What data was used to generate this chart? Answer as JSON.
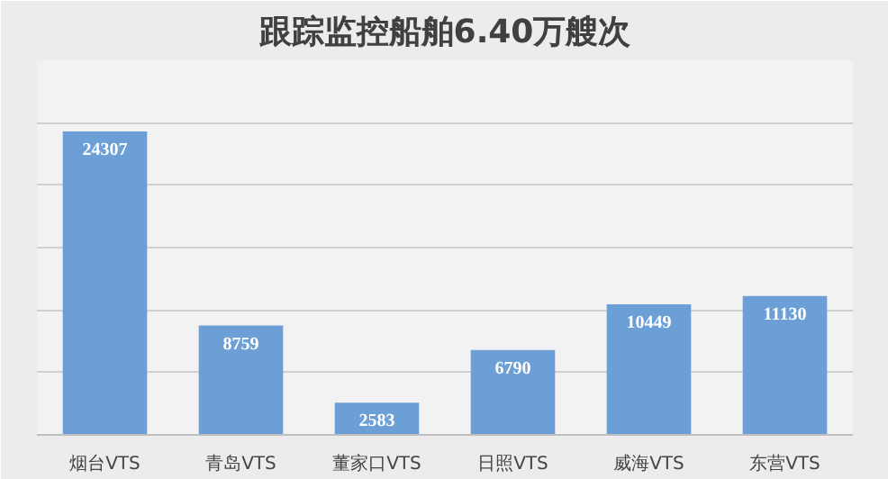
{
  "chart_data": {
    "type": "bar",
    "title": "跟踪监控船舶6.40万艘次",
    "categories": [
      "烟台VTS",
      "青岛VTS",
      "董家口VTS",
      "日照VTS",
      "威海VTS",
      "东营VTS"
    ],
    "values": [
      24307,
      8759,
      2583,
      6790,
      10449,
      11130
    ],
    "color": "#6b9fd6",
    "data_labels": true,
    "ylim": [
      0,
      30000
    ],
    "yticks": [
      {
        "value": 0,
        "label": null
      },
      {
        "value": 5000,
        "label": null
      },
      {
        "value": 10000,
        "label": null
      },
      {
        "value": 15000,
        "label": null
      },
      {
        "value": 20000,
        "label": null
      },
      {
        "value": 25000,
        "label": null
      },
      {
        "value": 30000,
        "label": null
      }
    ],
    "grid": "y",
    "tick_labels": "x"
  }
}
